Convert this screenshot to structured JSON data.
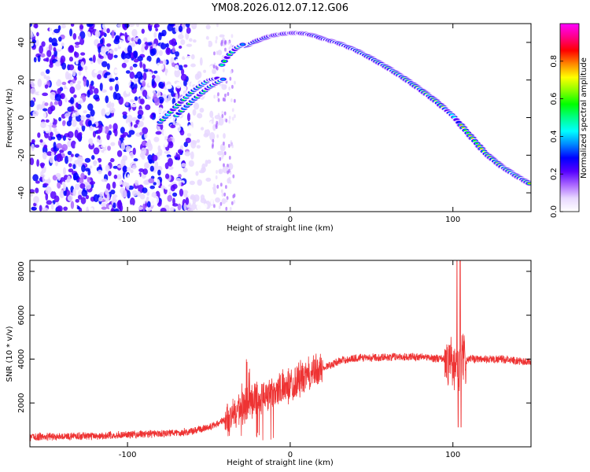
{
  "page_title": "YM08.2026.012.07.12.G06",
  "chart_data": [
    {
      "type": "heatmap",
      "name": "spectrogram",
      "xlabel": "Height of straight line (km)",
      "ylabel": "Frequency (Hz)",
      "xlim": [
        -160,
        148
      ],
      "ylim": [
        -50,
        50
      ],
      "xticks": [
        -100,
        0,
        100
      ],
      "yticks": [
        -40,
        -20,
        0,
        20,
        40
      ],
      "colorbar": {
        "label": "Normalized spectral amplitude",
        "range": [
          0,
          1
        ],
        "ticks": [
          0.0,
          0.2,
          0.4,
          0.6,
          0.8
        ],
        "colors": [
          "#ffffff",
          "#e8d8ff",
          "#aa66ff",
          "#5500ff",
          "#0000ff",
          "#0088ff",
          "#00ffff",
          "#00ff88",
          "#00ff00",
          "#88ff00",
          "#ffff00",
          "#ff8800",
          "#ff0000",
          "#ff0088",
          "#ff00ff"
        ]
      },
      "main_track": {
        "x": [
          -28,
          -20,
          -12,
          -5,
          0,
          5,
          10,
          15,
          20,
          30,
          40,
          50,
          60,
          70,
          80,
          90,
          100,
          110,
          120,
          130,
          140,
          148
        ],
        "y": [
          38,
          41,
          43.5,
          44.5,
          45,
          45,
          44.5,
          43.5,
          42,
          39.5,
          36,
          31.5,
          26.5,
          21,
          15,
          8.5,
          1,
          -9,
          -19,
          -26,
          -31.5,
          -35.5
        ]
      },
      "secondary_tracks": [
        {
          "x": [
            -80,
            -70,
            -60,
            -50,
            -44
          ],
          "y": [
            -2.5,
            6,
            14,
            20,
            21
          ]
        },
        {
          "x": [
            -70,
            -60,
            -50,
            -40
          ],
          "y": [
            1,
            9,
            16,
            21
          ]
        },
        {
          "x": [
            -42,
            -38,
            -33,
            -29
          ],
          "y": [
            28,
            33,
            37,
            39
          ]
        }
      ],
      "noise_region_x": [
        -160,
        -36
      ]
    },
    {
      "type": "line",
      "name": "snr",
      "xlabel": "Height of straight line (km)",
      "ylabel": "SNR (10 * v/v)",
      "xlim": [
        -160,
        148
      ],
      "ylim": [
        0,
        8500
      ],
      "xticks": [
        -100,
        0,
        100
      ],
      "yticks": [
        2000,
        4000,
        6000,
        8000
      ],
      "color": "#ee3333",
      "profile": {
        "x": [
          -160,
          -120,
          -80,
          -60,
          -50,
          -40,
          -32,
          -25,
          -20,
          -10,
          0,
          10,
          20,
          30,
          40,
          60,
          80,
          95,
          100,
          103,
          106,
          110,
          130,
          148
        ],
        "y": [
          450,
          500,
          600,
          700,
          900,
          1200,
          1600,
          2000,
          2300,
          2500,
          2800,
          3200,
          3600,
          3900,
          4050,
          4100,
          4100,
          4000,
          3700,
          3500,
          3800,
          4000,
          4000,
          3850
        ]
      },
      "spikes": [
        {
          "x": 102.5,
          "y": 8500
        },
        {
          "x": 104.5,
          "y": 8500
        },
        {
          "x": 103.2,
          "y": 900
        },
        {
          "x": 105.0,
          "y": 900
        }
      ]
    }
  ]
}
